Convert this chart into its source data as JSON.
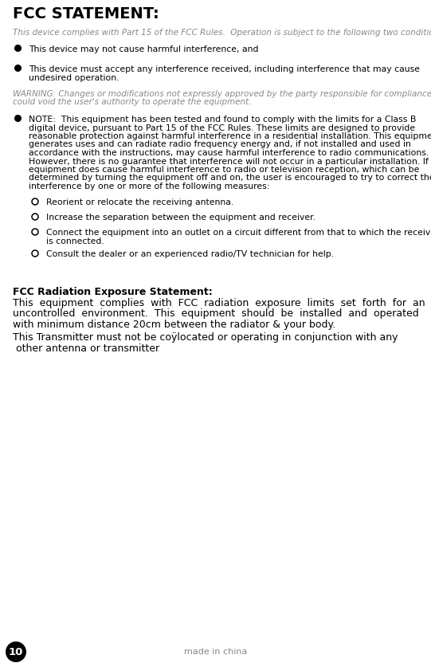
{
  "bg_color": "#ffffff",
  "title": "FCC STATEMENT:",
  "italic_line": "This device complies with Part 15 of the FCC Rules.  Operation is subject to the following two conditions:",
  "bullet1": "This device may not cause harmful interference, and",
  "bullet2_line1": "This device must accept any interference received, including interference that may cause",
  "bullet2_line2": "undesired operation.",
  "warning_line1": "WARNING: Changes or modifications not expressly approved by the party responsible for compliance",
  "warning_line2": "could void the user's authority to operate the equipment.",
  "note_line1": "NOTE:  This equipment has been tested and found to comply with the limits for a Class B",
  "note_line2": "digital device, pursuant to Part 15 of the FCC Rules. These limits are designed to provide",
  "note_line3": "reasonable protection against harmful interference in a residential installation. This equipment",
  "note_line4": "generates uses and can radiate radio frequency energy and, if not installed and used in",
  "note_line5": "accordance with the instructions, may cause harmful interference to radio communications.",
  "note_line6": "However, there is no guarantee that interference will not occur in a particular installation. If this",
  "note_line7": "equipment does cause harmful interference to radio or television reception, which can be",
  "note_line8": "determined by turning the equipment off and on, the user is encouraged to try to correct the",
  "note_line9": "interference by one or more of the following measures:",
  "sub1": "Reorient or relocate the receiving antenna.",
  "sub2": "Increase the separation between the equipment and receiver.",
  "sub3_line1": "Connect the equipment into an outlet on a circuit different from that to which the receiver",
  "sub3_line2": "is connected.",
  "sub4": "Consult the dealer or an experienced radio/TV technician for help.",
  "fcc_header": "FCC Radiation Exposure Statement:",
  "fcc_body1": "This  equipment  complies  with  FCC  radiation  exposure  limits  set  forth  for  an",
  "fcc_body2": "uncontrolled  environment.  This  equipment  should  be  installed  and  operated",
  "fcc_body3": "with minimum distance 20cm between the radiator & your body.",
  "fcc_body4": "This Transmitter must not be coÿlocated or operating in conjunction with any",
  "fcc_body5": " other antenna or transmitter",
  "footer_page": "10",
  "footer_text": "made in china",
  "text_color": "#000000",
  "gray_color": "#888888",
  "title_fontsize": 14,
  "body_fontsize": 7.8,
  "italic_fontsize": 7.5,
  "warning_fontsize": 7.5,
  "fcc_header_fontsize": 9.0,
  "fcc_body_fontsize": 9.0
}
